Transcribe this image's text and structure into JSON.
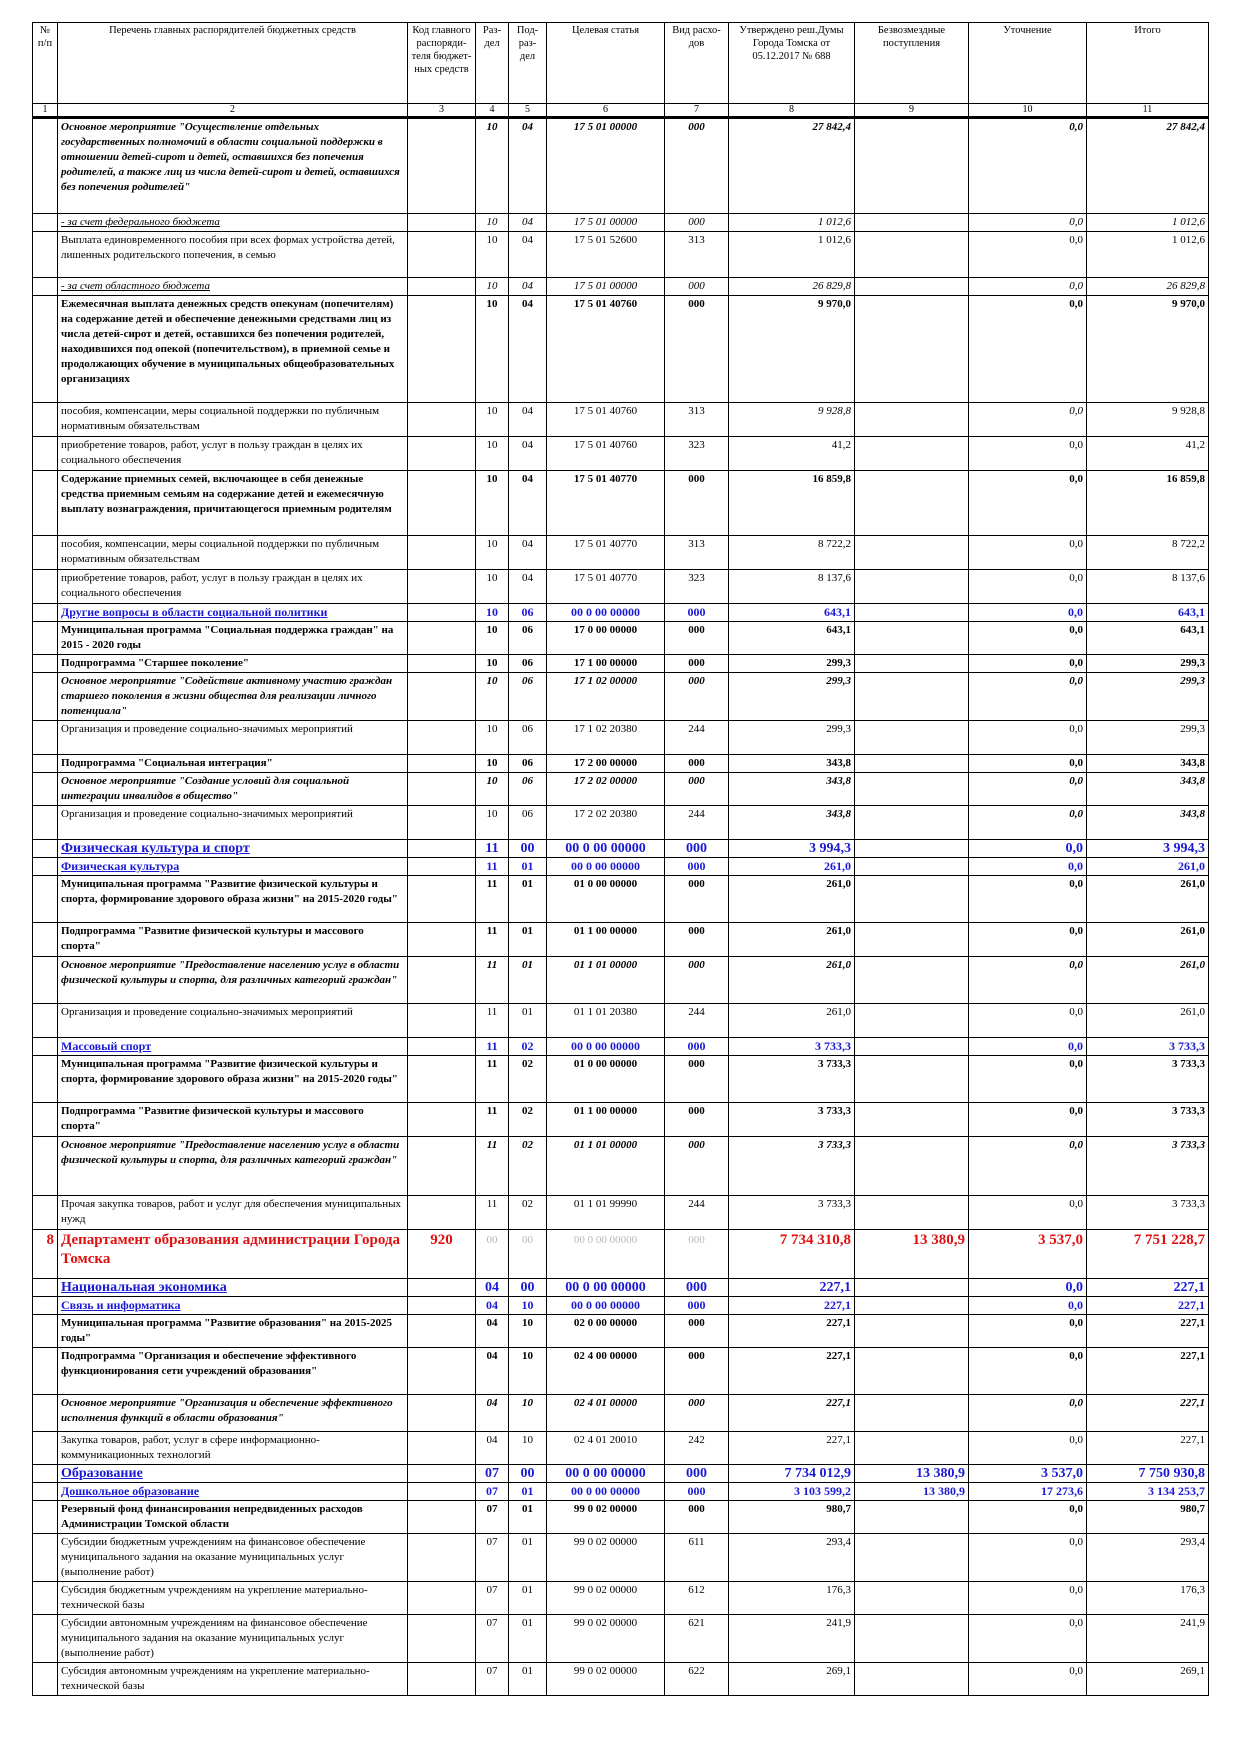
{
  "header": {
    "cols": [
      "№ п/п",
      "Перечень главных распорядителей бюджетных средств",
      "Код главного распоряди-теля бюджет-ных средств",
      "Раз-дел",
      "Под-раз-дел",
      "Целевая статья",
      "Вид расхо-дов",
      "Утверждено реш.Думы Города Томска от 05.12.2017 № 688",
      "Безвозмездные поступления",
      "Уточнение",
      "Итого"
    ],
    "nums": [
      "1",
      "2",
      "3",
      "4",
      "5",
      "6",
      "7",
      "8",
      "9",
      "10",
      "11"
    ]
  },
  "rows": [
    {
      "style": "bi",
      "h": 94,
      "num": "",
      "name": "Основное мероприятие \"Осуществление отдельных государственных полномочий в области социальной поддержки в отношении детей-сирот и детей, оставшихся без попечения родителей, а также лиц из числа детей-сирот и детей, оставшихся без попечения родителей\"",
      "code": "",
      "rz": "10",
      "pr": "04",
      "cs": "17 5 01 00000",
      "vr": "000",
      "approved": "27 842,4",
      "gratis": "",
      "adj": "0,0",
      "total": "27 842,4"
    },
    {
      "style": "iu",
      "h": 15,
      "num": "",
      "name": " - за счет федерального бюджета",
      "code": "",
      "rz": "10",
      "pr": "04",
      "cs": "17 5 01 00000",
      "vr": "000",
      "approved": "1 012,6",
      "gratis": "",
      "adj": "0,0",
      "total": "1 012,6"
    },
    {
      "style": "",
      "h": 45,
      "num": "",
      "name": "  Выплата единовременного пособия при всех формах устройства детей, лишенных родительского попечения, в семью",
      "code": "",
      "rz": "10",
      "pr": "04",
      "cs": "17 5 01 52600",
      "vr": "313",
      "approved": "1 012,6",
      "gratis": "",
      "adj": "0,0",
      "total": "1 012,6"
    },
    {
      "style": "iu",
      "h": 15,
      "num": "",
      "name": " - за счет областного бюджета",
      "code": "",
      "rz": "10",
      "pr": "04",
      "cs": "17 5 01 00000",
      "vr": "000",
      "approved": "26 829,8",
      "gratis": "",
      "adj": "0,0",
      "total": "26 829,8"
    },
    {
      "style": "b",
      "h": 106,
      "num": "",
      "name": "  Ежемесячная выплата денежных средств опекунам (попечителям) на содержание детей и обеспечение денежными средствами лиц из числа детей-сирот и детей, оставшихся без попечения родителей, находившихся под опекой (попечительством), в приемной семье и продолжающих обучение в муниципальных общеобразовательных организациях",
      "code": "",
      "rz": "10",
      "pr": "04",
      "cs": "17 5 01 40760",
      "vr": "000",
      "approved": "9 970,0",
      "gratis": "",
      "adj": "0,0",
      "total": "9 970,0"
    },
    {
      "style": "",
      "h": 33,
      "num": "",
      "name": "    пособия, компенсации, меры социальной поддержки по публичным нормативным обязательствам",
      "code": "",
      "rz": "10",
      "pr": "04",
      "cs": "17 5 01 40760",
      "vr": "313",
      "approved": "9 928,8",
      "gratis": "",
      "adj": "0,0",
      "total": "9 928,8",
      "aiI": true
    },
    {
      "style": "",
      "h": 33,
      "num": "",
      "name": "   приобретение товаров, работ, услуг в пользу граждан в целях их социального обеспечения",
      "code": "",
      "rz": "10",
      "pr": "04",
      "cs": "17 5 01 40760",
      "vr": "323",
      "approved": "41,2",
      "gratis": "",
      "adj": "0,0",
      "total": "41,2"
    },
    {
      "style": "b",
      "h": 64,
      "num": "",
      "name": "  Содержание приемных семей, включающее в себя денежные средства приемным семьям на содержание детей и ежемесячную выплату вознаграждения, причитающегося приемным родителям",
      "code": "",
      "rz": "10",
      "pr": "04",
      "cs": "17 5 01 40770",
      "vr": "000",
      "approved": "16 859,8",
      "gratis": "",
      "adj": "0,0",
      "total": "16 859,8"
    },
    {
      "style": "",
      "h": 33,
      "num": "",
      "name": "    пособия, компенсации, меры социальной поддержки по публичным нормативным обязательствам",
      "code": "",
      "rz": "10",
      "pr": "04",
      "cs": "17 5 01 40770",
      "vr": "313",
      "approved": "8 722,2",
      "gratis": "",
      "adj": "0,0",
      "total": "8 722,2"
    },
    {
      "style": "",
      "h": 33,
      "num": "",
      "name": "   приобретение товаров, работ, услуг в пользу граждан в целях их социального обеспечения",
      "code": "",
      "rz": "10",
      "pr": "04",
      "cs": "17 5 01 40770",
      "vr": "323",
      "approved": "8 137,6",
      "gratis": "",
      "adj": "0,0",
      "total": "8 137,6"
    },
    {
      "style": "blue",
      "h": 15,
      "num": "",
      "name": "Другие вопросы в области социальной политики",
      "code": "",
      "rz": "10",
      "pr": "06",
      "cs": "00 0 00 00000",
      "vr": "000",
      "approved": "643,1",
      "gratis": "",
      "adj": "0,0",
      "total": "643,1"
    },
    {
      "style": "b",
      "h": 31,
      "num": "",
      "name": "Муниципальная программа \"Социальная поддержка граждан\" на 2015 - 2020 годы",
      "code": "",
      "rz": "10",
      "pr": "06",
      "cs": "17 0 00 00000",
      "vr": "000",
      "approved": "643,1",
      "gratis": "",
      "adj": "0,0",
      "total": "643,1"
    },
    {
      "style": "b",
      "h": 15,
      "num": "",
      "name": "Подпрограмма \"Старшее поколение\"",
      "code": "",
      "rz": "10",
      "pr": "06",
      "cs": "17 1 00 00000",
      "vr": "000",
      "approved": "299,3",
      "gratis": "",
      "adj": "0,0",
      "total": "299,3"
    },
    {
      "style": "bi",
      "h": 46,
      "num": "",
      "name": " Основное мероприятие \"Содействие активному участию граждан старшего поколения в жизни общества для реализации личного потенциала\"",
      "code": "",
      "rz": "10",
      "pr": "06",
      "cs": "17 1 02 00000",
      "vr": "000",
      "approved": "299,3",
      "gratis": "",
      "adj": "0,0",
      "total": "299,3"
    },
    {
      "style": "",
      "h": 33,
      "num": "",
      "name": "  Организация и проведение социально-значимых мероприятий",
      "code": "",
      "rz": "10",
      "pr": "06",
      "cs": "17 1 02 20380",
      "vr": "244",
      "approved": "299,3",
      "gratis": "",
      "adj": "0,0",
      "total": "299,3"
    },
    {
      "style": "b",
      "h": 15,
      "num": "",
      "name": "Подпрограмма \"Социальная интеграция\"",
      "code": "",
      "rz": "10",
      "pr": "06",
      "cs": "17 2 00 00000",
      "vr": "000",
      "approved": "343,8",
      "gratis": "",
      "adj": "0,0",
      "total": "343,8"
    },
    {
      "style": "bi",
      "h": 31,
      "num": "",
      "name": " Основное мероприятие \"Создание условий для социальной интеграции инвалидов в общество\"",
      "code": "",
      "rz": "10",
      "pr": "06",
      "cs": "17 2 02 00000",
      "vr": "000",
      "approved": "343,8",
      "gratis": "",
      "adj": "0,0",
      "total": "343,8"
    },
    {
      "style": "",
      "h": 33,
      "num": "",
      "name": "  Организация и проведение социально-значимых мероприятий",
      "code": "",
      "rz": "10",
      "pr": "06",
      "cs": "17 2 02 20380",
      "vr": "244",
      "approved": "343,8",
      "gratis": "",
      "adj": "0,0",
      "total": "343,8",
      "biNums": true
    },
    {
      "style": "blue2",
      "h": 17,
      "num": "",
      "name": "Физическая культура и спорт",
      "code": "",
      "rz": "11",
      "pr": "00",
      "cs": "00 0 00 00000",
      "vr": "000",
      "approved": "3 994,3",
      "gratis": "",
      "adj": "0,0",
      "total": "3 994,3"
    },
    {
      "style": "blue",
      "h": 15,
      "num": "",
      "name": "Физическая культура",
      "code": "",
      "rz": "11",
      "pr": "01",
      "cs": "00 0 00 00000",
      "vr": "000",
      "approved": "261,0",
      "gratis": "",
      "adj": "0,0",
      "total": "261,0"
    },
    {
      "style": "b",
      "h": 46,
      "num": "",
      "name": "Муниципальная программа \"Развитие физической культуры и спорта, формирование здорового образа жизни\" на 2015-2020 годы\"",
      "code": "",
      "rz": "11",
      "pr": "01",
      "cs": "01 0 00 00000",
      "vr": "000",
      "approved": "261,0",
      "gratis": "",
      "adj": "0,0",
      "total": "261,0"
    },
    {
      "style": "b",
      "h": 33,
      "num": "",
      "name": "Подпрограмма \"Развитие физической культуры и массового спорта\"",
      "code": "",
      "rz": "11",
      "pr": "01",
      "cs": "01 1 00 00000",
      "vr": "000",
      "approved": "261,0",
      "gratis": "",
      "adj": "0,0",
      "total": "261,0"
    },
    {
      "style": "bi",
      "h": 46,
      "num": "",
      "name": "Основное мероприятие \"Предоставление населению услуг в области физической культуры и спорта, для различных категорий граждан\"",
      "code": "",
      "rz": "11",
      "pr": "01",
      "cs": "01 1 01 00000",
      "vr": "000",
      "approved": "261,0",
      "gratis": "",
      "adj": "0,0",
      "total": "261,0"
    },
    {
      "style": "",
      "h": 33,
      "num": "",
      "name": "Организация и проведение социально-значимых мероприятий",
      "code": "",
      "rz": "11",
      "pr": "01",
      "cs": "01 1 01 20380",
      "vr": "244",
      "approved": "261,0",
      "gratis": "",
      "adj": "0,0",
      "total": "261,0"
    },
    {
      "style": "blue",
      "h": 15,
      "num": "",
      "name": "Массовый спорт",
      "code": "",
      "rz": "11",
      "pr": "02",
      "cs": "00 0 00 00000",
      "vr": "000",
      "approved": "3 733,3",
      "gratis": "",
      "adj": "0,0",
      "total": "3 733,3"
    },
    {
      "style": "b",
      "h": 46,
      "num": "",
      "name": "Муниципальная программа \"Развитие физической культуры и спорта, формирование здорового образа жизни\" на 2015-2020 годы\"",
      "code": "",
      "rz": "11",
      "pr": "02",
      "cs": "01 0 00 00000",
      "vr": "000",
      "approved": "3 733,3",
      "gratis": "",
      "adj": "0,0",
      "total": "3 733,3"
    },
    {
      "style": "b",
      "h": 33,
      "num": "",
      "name": "Подпрограмма \"Развитие физической культуры и массового спорта\"",
      "code": "",
      "rz": "11",
      "pr": "02",
      "cs": "01 1 00 00000",
      "vr": "000",
      "approved": "3 733,3",
      "gratis": "",
      "adj": "0,0",
      "total": "3 733,3"
    },
    {
      "style": "bi",
      "h": 58,
      "num": "",
      "name": " Основное мероприятие \"Предоставление населению услуг в области физической культуры и спорта, для различных категорий граждан\"",
      "code": "",
      "rz": "11",
      "pr": "02",
      "cs": "01 1 01 00000",
      "vr": "000",
      "approved": "3 733,3",
      "gratis": "",
      "adj": "0,0",
      "total": "3 733,3"
    },
    {
      "style": "",
      "h": 33,
      "num": "",
      "name": "Прочая закупка товаров, работ и услуг для обеспечения муниципальных нужд",
      "code": "",
      "rz": "11",
      "pr": "02",
      "cs": "01 1 01 99990",
      "vr": "244",
      "approved": "3 733,3",
      "gratis": "",
      "adj": "0,0",
      "total": "3 733,3"
    },
    {
      "style": "red",
      "h": 48,
      "num": "8",
      "name": "Департамент образования администрации Города Томска",
      "code": "920",
      "rz": "00",
      "pr": "00",
      "cs": "00 0 00 00000",
      "vr": "000",
      "approved": "7 734 310,8",
      "gratis": "13 380,9",
      "adj": "3 537,0",
      "total": "7 751 228,7"
    },
    {
      "style": "blue2",
      "h": 15,
      "num": "",
      "name": "Национальная экономика",
      "code": "",
      "rz": "04",
      "pr": "00",
      "cs": "00 0 00 00000",
      "vr": "000",
      "approved": "227,1",
      "gratis": "",
      "adj": "0,0",
      "total": "227,1"
    },
    {
      "style": "blue",
      "h": 15,
      "num": "",
      "name": "Связь и информатика",
      "code": "",
      "rz": "04",
      "pr": "10",
      "cs": "00 0 00 00000",
      "vr": "000",
      "approved": "227,1",
      "gratis": "",
      "adj": "0,0",
      "total": "227,1"
    },
    {
      "style": "b",
      "h": 31,
      "num": "",
      "name": "Муниципальная программа \"Развитие образования\" на 2015-2025 годы\"",
      "code": "",
      "rz": "04",
      "pr": "10",
      "cs": "02 0 00 00000",
      "vr": "000",
      "approved": "227,1",
      "gratis": "",
      "adj": "0,0",
      "total": "227,1"
    },
    {
      "style": "b",
      "h": 46,
      "num": "",
      "name": "Подпрограмма \"Организация и обеспечение эффективного функционирования сети учреждений образования\"",
      "code": "",
      "rz": "04",
      "pr": "10",
      "cs": "02 4 00 00000",
      "vr": "000",
      "approved": "227,1",
      "gratis": "",
      "adj": "0,0",
      "total": "227,1"
    },
    {
      "style": "bi",
      "h": 36,
      "num": "",
      "name": " Основное мероприятие \"Организация и обеспечение эффективного исполнения функций в области образования\"",
      "code": "",
      "rz": "04",
      "pr": "10",
      "cs": "02 4 01 00000",
      "vr": "000",
      "approved": "227,1",
      "gratis": "",
      "adj": "0,0",
      "total": "227,1"
    },
    {
      "style": "",
      "h": 31,
      "num": "",
      "name": "  Закупка товаров, работ, услуг в сфере информационно-коммуникационных технологий",
      "code": "",
      "rz": "04",
      "pr": "10",
      "cs": "02 4 01 20010",
      "vr": "242",
      "approved": "227,1",
      "gratis": "",
      "adj": "0,0",
      "total": "227,1"
    },
    {
      "style": "blue2",
      "h": 15,
      "num": "",
      "name": "Образование",
      "code": "",
      "rz": "07",
      "pr": "00",
      "cs": "00 0 00 00000",
      "vr": "000",
      "approved": "7 734 012,9",
      "gratis": "13 380,9",
      "adj": "3 537,0",
      "total": "7 750 930,8"
    },
    {
      "style": "blue",
      "h": 15,
      "num": "",
      "name": "Дошкольное образование",
      "code": "",
      "rz": "07",
      "pr": "01",
      "cs": "00 0 00 00000",
      "vr": "000",
      "approved": "3 103 599,2",
      "gratis": "13 380,9",
      "adj": "17 273,6",
      "total": "3 134 253,7"
    },
    {
      "style": "b",
      "h": 31,
      "num": "",
      "name": "Резервный фонд финансирования непредвиденных расходов Администрации Томской области",
      "code": "",
      "rz": "07",
      "pr": "01",
      "cs": "99 0  02 00000",
      "vr": "000",
      "approved": "980,7",
      "gratis": "",
      "adj": "0,0",
      "total": "980,7"
    },
    {
      "style": "",
      "h": 46,
      "num": "",
      "name": "  Субсидии бюджетным учреждениям на финансовое обеспечение муниципального задания на оказание муниципальных услуг (выполнение работ)",
      "code": "",
      "rz": "07",
      "pr": "01",
      "cs": "99 0  02 00000",
      "vr": "611",
      "approved": "293,4",
      "gratis": "",
      "adj": "0,0",
      "total": "293,4"
    },
    {
      "style": "",
      "h": 31,
      "num": "",
      "name": "  Субсидия бюджетным учреждениям на укрепление материально-технической базы",
      "code": "",
      "rz": "07",
      "pr": "01",
      "cs": "99 0  02 00000",
      "vr": "612",
      "approved": "176,3",
      "gratis": "",
      "adj": "0,0",
      "total": "176,3"
    },
    {
      "style": "",
      "h": 46,
      "num": "",
      "name": "  Субсидии автономным учреждениям на финансовое обеспечение муниципального задания на оказание муниципальных услуг (выполнение работ)",
      "code": "",
      "rz": "07",
      "pr": "01",
      "cs": "99 0  02 00000",
      "vr": "621",
      "approved": "241,9",
      "gratis": "",
      "adj": "0,0",
      "total": "241,9"
    },
    {
      "style": "",
      "h": 31,
      "num": "",
      "name": "  Субсидия автономным учреждениям на укрепление материально-технической базы",
      "code": "",
      "rz": "07",
      "pr": "01",
      "cs": "99 0  02 00000",
      "vr": "622",
      "approved": "269,1",
      "gratis": "",
      "adj": "0,0",
      "total": "269,1"
    }
  ]
}
